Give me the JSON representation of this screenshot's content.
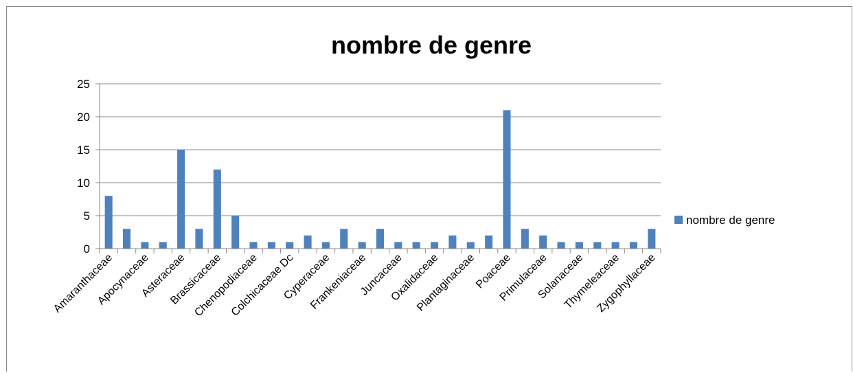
{
  "chart_data": {
    "type": "bar",
    "title": "nombre de genre",
    "categories": [
      "Amaranthaceae",
      null,
      "Apocynaceae",
      null,
      "Asteraceae",
      null,
      "Brassicaceae",
      null,
      "Chenopodiaceae",
      null,
      "Colchicaceae Dc",
      null,
      "Cyperaceae",
      null,
      "Frankeniaceae",
      null,
      "Juncaceae",
      null,
      "Oxalidaceae",
      null,
      "Plantaginaceae",
      null,
      "Poaceae",
      null,
      "Primulaceae",
      null,
      "Solanaceae",
      null,
      "Thymeleaceae",
      null,
      "Zygophyllaceae"
    ],
    "series": [
      {
        "name": "nombre de genre",
        "color": "#4f81bd",
        "values": [
          8,
          3,
          1,
          1,
          15,
          3,
          12,
          5,
          1,
          1,
          1,
          2,
          1,
          3,
          1,
          3,
          1,
          1,
          1,
          2,
          1,
          2,
          21,
          3,
          2,
          1,
          1,
          1,
          1,
          1,
          3
        ]
      }
    ],
    "ylim": [
      0,
      25
    ],
    "yticks": [
      0,
      5,
      10,
      15,
      20,
      25
    ],
    "grid": true,
    "legend": "right"
  }
}
